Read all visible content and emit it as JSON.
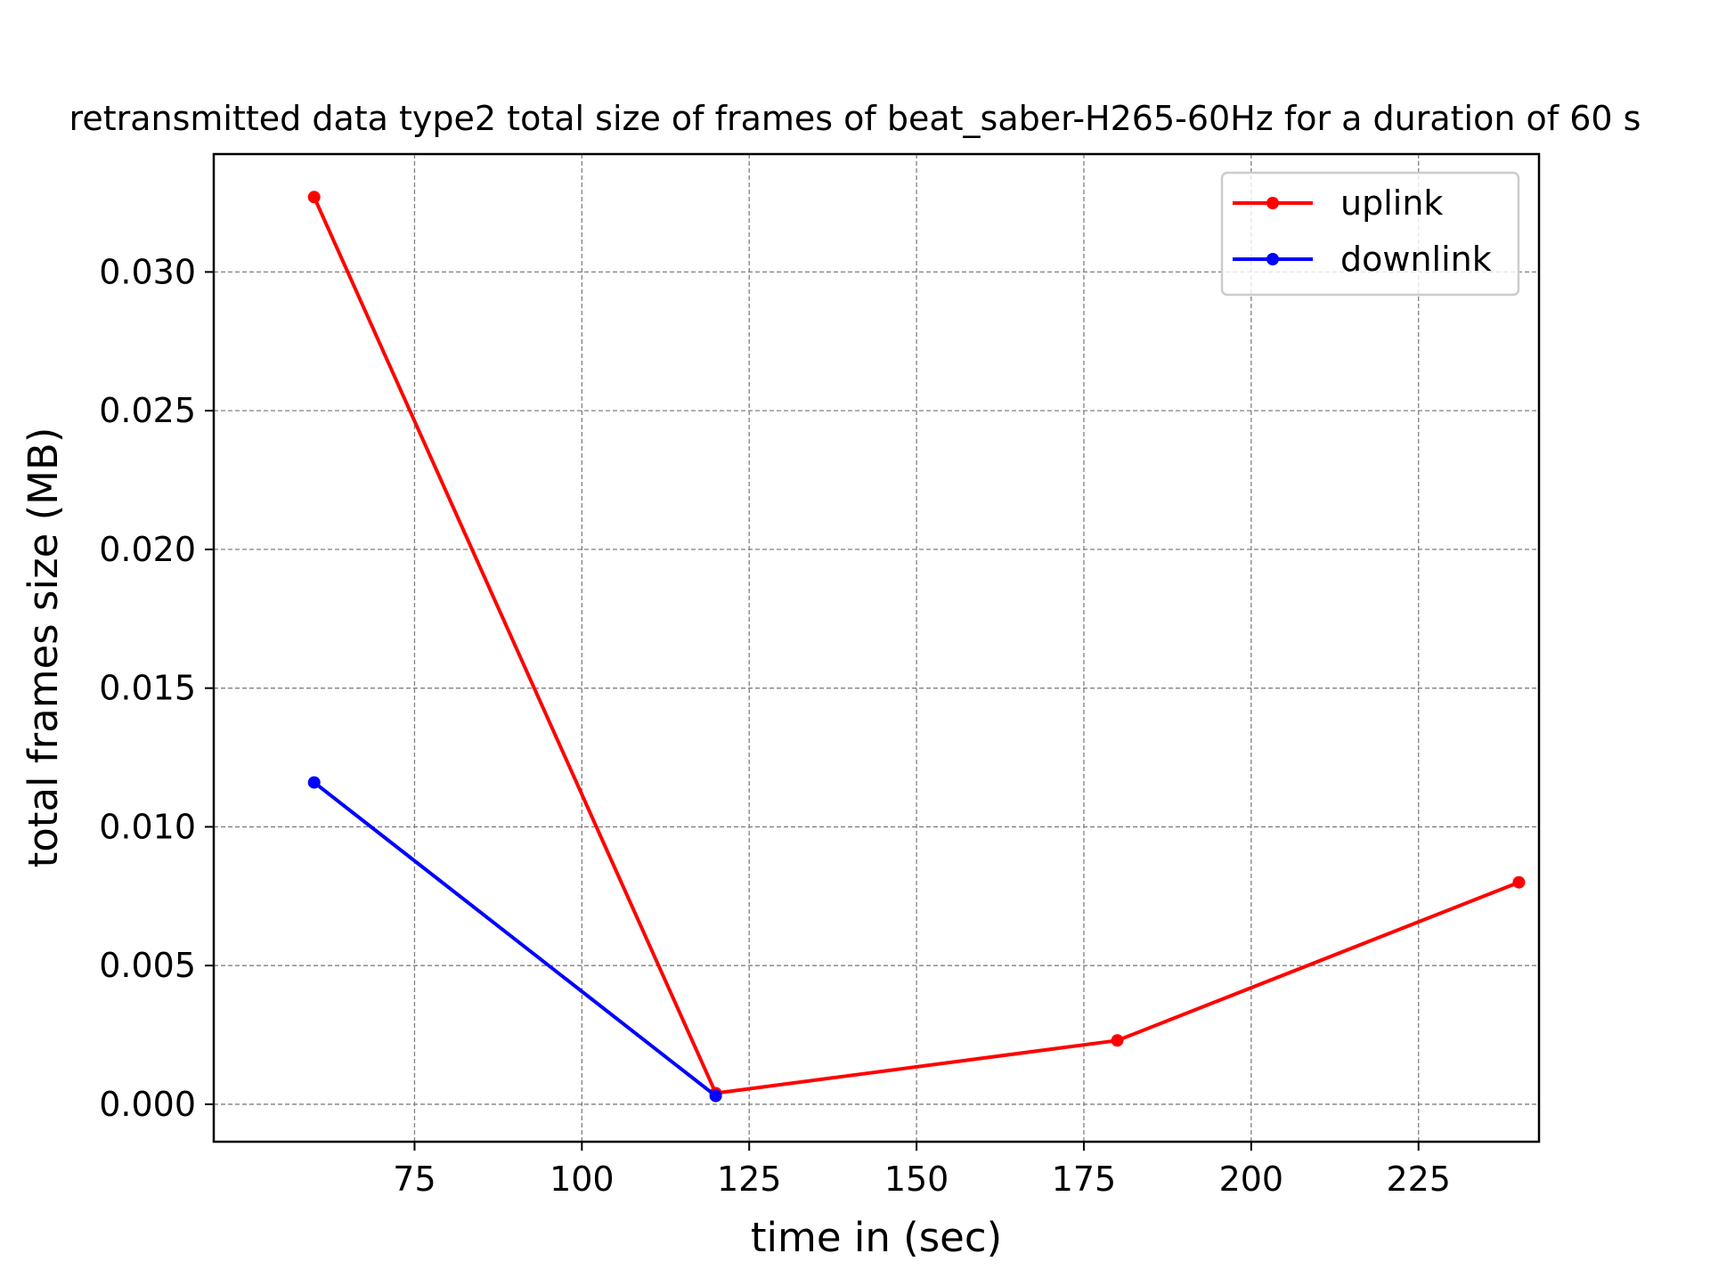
{
  "chart_data": {
    "type": "line",
    "title": "retransmitted data type2 total size of frames of beat_saber-H265-60Hz for a duration of 60 s",
    "xlabel": "time in (sec)",
    "ylabel": "total frames size (MB)",
    "xlim": [
      45,
      243
    ],
    "ylim": [
      -0.00135,
      0.03425
    ],
    "xticks": [
      75,
      100,
      125,
      150,
      175,
      200,
      225
    ],
    "xtick_labels": [
      "75",
      "100",
      "125",
      "150",
      "175",
      "200",
      "225"
    ],
    "yticks": [
      0.0,
      0.005,
      0.01,
      0.015,
      0.02,
      0.025,
      0.03
    ],
    "ytick_labels": [
      "0.000",
      "0.005",
      "0.010",
      "0.015",
      "0.020",
      "0.025",
      "0.030"
    ],
    "grid": true,
    "legend_position": "top-right",
    "series": [
      {
        "name": "uplink",
        "color": "#ff0000",
        "x": [
          60,
          120,
          180,
          240
        ],
        "y": [
          0.0327,
          0.0004,
          0.0023,
          0.008
        ]
      },
      {
        "name": "downlink",
        "color": "#0000ff",
        "x": [
          60,
          120
        ],
        "y": [
          0.0116,
          0.0003
        ]
      }
    ]
  }
}
